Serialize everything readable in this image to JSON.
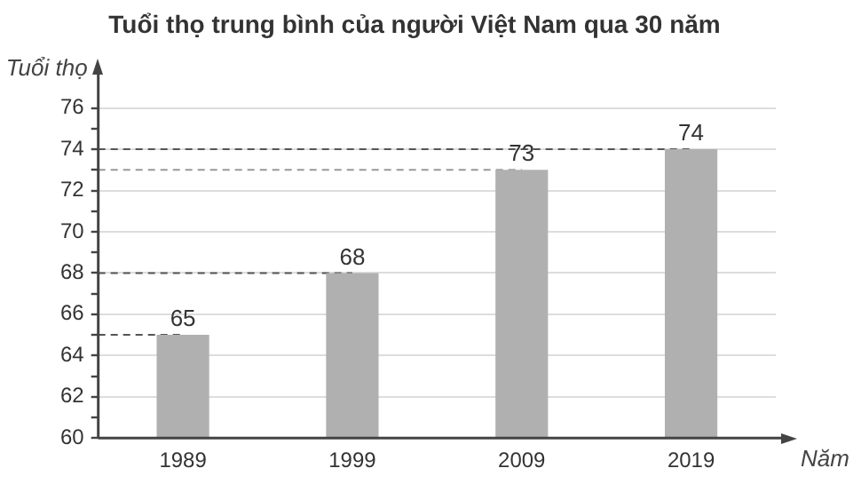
{
  "chart_data": {
    "type": "bar",
    "title": "Tuổi thọ trung bình của người Việt Nam qua 30 năm",
    "xlabel": "Năm",
    "ylabel": "Tuổi thọ",
    "categories": [
      "1989",
      "1999",
      "2009",
      "2019"
    ],
    "series": [
      {
        "color": "#b0b0b0",
        "values": [
          65,
          68,
          73,
          74
        ]
      }
    ],
    "ylim": [
      60,
      76
    ],
    "yticks": [
      60,
      {
        "value": 61,
        "label": null
      },
      62,
      {
        "value": 63,
        "label": null
      },
      64,
      {
        "value": 65,
        "label": null
      },
      66,
      {
        "value": 67,
        "label": null
      },
      68,
      {
        "value": 69,
        "label": null
      },
      70,
      {
        "value": 71,
        "label": null
      },
      72,
      {
        "value": 73,
        "label": null
      },
      74,
      {
        "value": 75,
        "label": null
      },
      76
    ],
    "ref_lines": [
      {
        "axis": "y",
        "value": 65,
        "color": "#555555",
        "line_style": "dashed"
      },
      {
        "axis": "y",
        "value": 68,
        "color": "#555555",
        "line_style": "dashed"
      },
      {
        "axis": "y",
        "value": 73,
        "color": "#999999",
        "line_style": "dashed"
      },
      {
        "axis": "y",
        "value": 74,
        "color": "#555555",
        "line_style": "dashed"
      }
    ],
    "grid": "y",
    "data_labels": true,
    "legend": false
  }
}
